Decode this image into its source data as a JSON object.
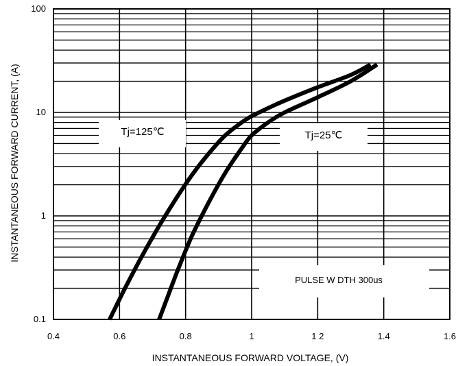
{
  "chart_data": {
    "type": "line",
    "title": "",
    "xlabel": "INSTANTANEOUS FORWARD VOLTAGE, (V)",
    "ylabel": "INSTANTANEOUS FORWARD CURRENT, (A)",
    "xlim": [
      0.4,
      1.6
    ],
    "ylim": [
      0.1,
      100
    ],
    "yscale": "log",
    "grid": true,
    "x_tick_labels": [
      "0.4",
      "0.6",
      "0.8",
      "1",
      "1 2",
      "1.4",
      "1.6"
    ],
    "y_tick_labels": [
      "0.1",
      "1",
      "10",
      "100"
    ],
    "series": [
      {
        "name": "Tj=125℃",
        "x": [
          0.57,
          0.62,
          0.67,
          0.72,
          0.77,
          0.82,
          0.87,
          0.92,
          0.97,
          1.0,
          1.05,
          1.1,
          1.2,
          1.3,
          1.36
        ],
        "y": [
          0.1,
          0.21,
          0.42,
          0.8,
          1.45,
          2.5,
          4.0,
          6.0,
          8.0,
          9.2,
          11.0,
          13.0,
          17.5,
          23.0,
          29.0
        ]
      },
      {
        "name": "Tj=25℃",
        "x": [
          0.72,
          0.75,
          0.78,
          0.82,
          0.87,
          0.92,
          0.97,
          1.0,
          1.05,
          1.1,
          1.2,
          1.3,
          1.38
        ],
        "y": [
          0.1,
          0.18,
          0.32,
          0.65,
          1.35,
          2.6,
          4.5,
          6.0,
          8.0,
          10.0,
          14.0,
          20.0,
          29.0
        ]
      }
    ],
    "annotations": [
      "Tj=125℃",
      "Tj=25℃",
      "PULSE W DTH 300us"
    ]
  }
}
